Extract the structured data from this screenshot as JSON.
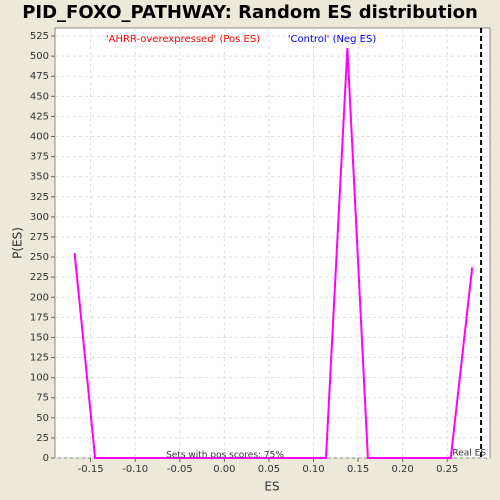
{
  "chart_data": {
    "type": "line",
    "title": "PID_FOXO_PATHWAY: Random ES distribution",
    "xlabel": "ES",
    "ylabel": "P(ES)",
    "xlim": [
      -0.19,
      0.298
    ],
    "ylim": [
      0,
      535
    ],
    "xticks": [
      -0.15,
      {
        "value": -0.1,
        "label": "-0.10"
      },
      -0.05,
      {
        "value": 0,
        "label": "0.00"
      },
      0.05,
      {
        "value": 0.1,
        "label": "0.10"
      },
      0.15,
      {
        "value": 0.2,
        "label": "0.20"
      },
      0.25
    ],
    "yticks": [
      0,
      25,
      50,
      75,
      100,
      125,
      150,
      175,
      200,
      225,
      250,
      275,
      300,
      325,
      350,
      375,
      400,
      425,
      450,
      475,
      500,
      525
    ],
    "grid": true,
    "series": [
      {
        "color": "#ff00ff",
        "x": [
          -0.168,
          -0.145,
          0.114,
          0.138,
          0.161,
          0.254,
          0.278
        ],
        "values": [
          255,
          0,
          0,
          510,
          0,
          0,
          237
        ]
      }
    ],
    "marker": {
      "value": 0.288,
      "label": "Real ES"
    },
    "annotations": [
      {
        "text": "'AHRR-overexpressed' (Pos ES)",
        "color": "#ff0000"
      },
      {
        "text": "'Control' (Neg ES)",
        "color": "#0000ff"
      },
      {
        "text": "Sets with pos scores: 75%",
        "color": "#333333"
      }
    ]
  }
}
